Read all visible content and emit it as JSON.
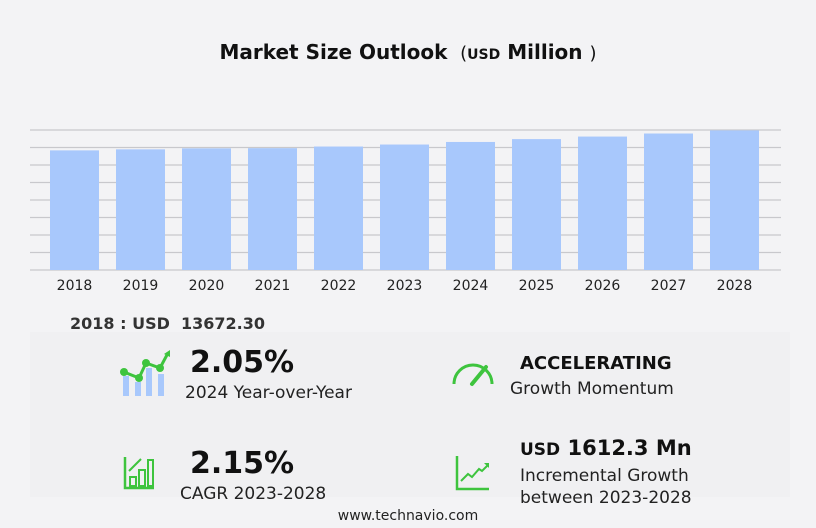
{
  "chart_data": {
    "type": "bar",
    "title": "Market Size Outlook",
    "title_unit": "USD",
    "title_unit_suffix": "Million",
    "categories": [
      "2018",
      "2019",
      "2020",
      "2021",
      "2022",
      "2023",
      "2024",
      "2025",
      "2026",
      "2027",
      "2028"
    ],
    "values": [
      13672.3,
      13790,
      13900,
      13920,
      14110,
      14340,
      14634,
      14960,
      15250,
      15600,
      15952
    ],
    "ylim": [
      0,
      16000
    ],
    "ygrid_step": 2000,
    "grid": true,
    "bar_color": "#a8c8fc"
  },
  "base_label": "2018 : USD  13672.30",
  "stats": {
    "yoy_value": "2.05%",
    "yoy_label": "2024 Year-over-Year",
    "momentum_value": "ACCELERATING",
    "momentum_label": "Growth Momentum",
    "cagr_value": "2.15%",
    "cagr_label": "CAGR 2023-2028",
    "incr_prefix": "USD",
    "incr_value": "1612.3 Mn",
    "incr_label1": "Incremental Growth",
    "incr_label2": "between 2023-2028"
  },
  "icons": {
    "yoy": "trend-bars-icon",
    "momentum": "speedometer-icon",
    "cagr": "bar-growth-icon",
    "incr": "line-growth-icon"
  },
  "accent": "#3ec43e",
  "footer": "www.technavio.com"
}
